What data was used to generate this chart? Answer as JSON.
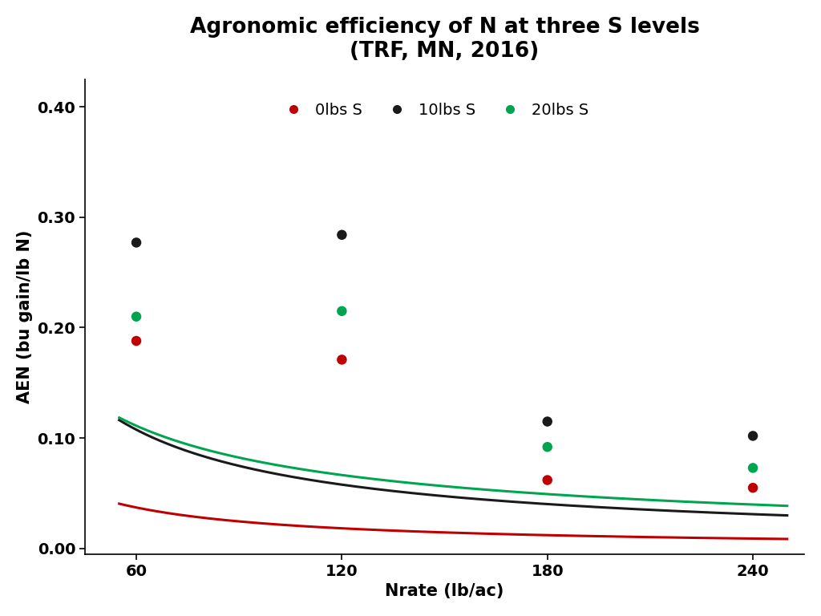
{
  "title": "Agronomic efficiency of N at three S levels\n(TRF, MN, 2016)",
  "xlabel": "Nrate (lb/ac)",
  "ylabel": "AEN (bu gain/lb N)",
  "xlim": [
    45,
    255
  ],
  "ylim": [
    -0.005,
    0.425
  ],
  "xticks": [
    60,
    120,
    180,
    240
  ],
  "yticks": [
    0.0,
    0.1,
    0.2,
    0.3,
    0.4
  ],
  "scatter": {
    "0lbs S": {
      "x": [
        60,
        120,
        180,
        240
      ],
      "y": [
        0.188,
        0.171,
        0.062,
        0.055
      ],
      "color": "#c00000",
      "label": "0lbs S"
    },
    "10lbs S": {
      "x": [
        60,
        120,
        180,
        240
      ],
      "y": [
        0.277,
        0.284,
        0.115,
        0.102
      ],
      "color": "#1a1a1a",
      "label": "10lbs S"
    },
    "20lbs S": {
      "x": [
        60,
        120,
        180,
        240
      ],
      "y": [
        0.21,
        0.215,
        0.092,
        0.073
      ],
      "color": "#00a550",
      "label": "20lbs S"
    }
  },
  "curves": {
    "0lbs S": {
      "a": 2.42,
      "b": -1.02,
      "color": "#c00000"
    },
    "10lbs S": {
      "a": 4.2,
      "b": -0.895,
      "color": "#1a1a1a"
    },
    "20lbs S": {
      "a": 2.3,
      "b": -0.74,
      "color": "#00a550"
    }
  },
  "legend_labels": [
    "0lbs S",
    "10lbs S",
    "20lbs S"
  ],
  "legend_colors": [
    "#c00000",
    "#1a1a1a",
    "#00a550"
  ],
  "title_fontsize": 19,
  "label_fontsize": 15,
  "tick_fontsize": 14,
  "legend_fontsize": 14,
  "marker_size": 9,
  "background_color": "#ffffff"
}
